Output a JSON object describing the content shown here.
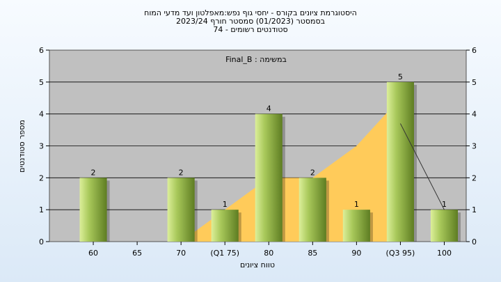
{
  "chart_data": {
    "type": "bar",
    "title_lines": [
      "היסטוגרמת ציונים בקורס - יחסי גוף נפש:מאפלטון ועד מדעי המוח",
      "בסמסטר (01/2023) סמסטר חורף 2023/24",
      "סטודנטים רשומים - 74"
    ],
    "annotation": "Final_B : במשימה",
    "xlabel": "טווח ציונים",
    "ylabel": "מספר סטודנטים",
    "categories": [
      "60",
      "65",
      "70",
      "(Q1 75)",
      "80",
      "85",
      "90",
      "(Q3 95)",
      "100"
    ],
    "values": [
      2,
      0,
      2,
      1,
      4,
      2,
      1,
      5,
      1
    ],
    "value_labels": [
      "2",
      "",
      "2",
      "1",
      "4",
      "2",
      "1",
      "5",
      "1"
    ],
    "cumulative_area": [
      0,
      0,
      0,
      1,
      2,
      2,
      3,
      4.5
    ],
    "trend_line": [
      null,
      null,
      null,
      null,
      null,
      null,
      null,
      3.7,
      1
    ],
    "ylim": [
      0,
      6
    ],
    "yticks": [
      "0",
      "1",
      "2",
      "3",
      "4",
      "5",
      "6"
    ],
    "grid": true,
    "colors": {
      "plot_bg": "#c0c0c0",
      "bar_light": "#dcef9a",
      "bar_mid": "#a8c85a",
      "bar_dark": "#5e7d22",
      "area": "#ffcb5a",
      "grid": "#000000"
    }
  }
}
